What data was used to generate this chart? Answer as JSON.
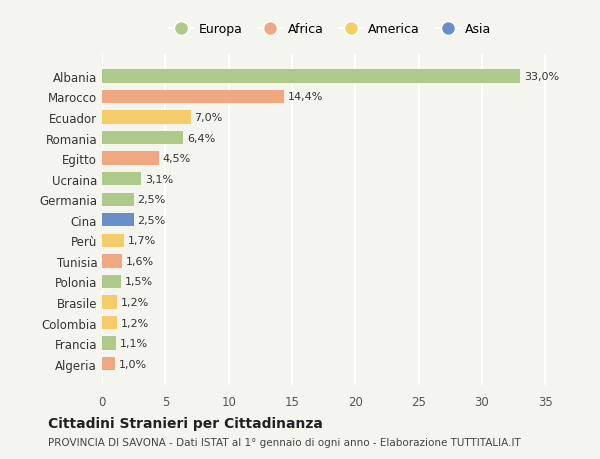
{
  "countries": [
    "Albania",
    "Marocco",
    "Ecuador",
    "Romania",
    "Egitto",
    "Ucraina",
    "Germania",
    "Cina",
    "Perù",
    "Tunisia",
    "Polonia",
    "Brasile",
    "Colombia",
    "Francia",
    "Algeria"
  ],
  "values": [
    33.0,
    14.4,
    7.0,
    6.4,
    4.5,
    3.1,
    2.5,
    2.5,
    1.7,
    1.6,
    1.5,
    1.2,
    1.2,
    1.1,
    1.0
  ],
  "labels": [
    "33,0%",
    "14,4%",
    "7,0%",
    "6,4%",
    "4,5%",
    "3,1%",
    "2,5%",
    "2,5%",
    "1,7%",
    "1,6%",
    "1,5%",
    "1,2%",
    "1,2%",
    "1,1%",
    "1,0%"
  ],
  "categories": [
    "Europa",
    "Africa",
    "America",
    "Asia"
  ],
  "continent": [
    "Europa",
    "Africa",
    "America",
    "Europa",
    "Africa",
    "Europa",
    "Europa",
    "Asia",
    "America",
    "Africa",
    "Europa",
    "America",
    "America",
    "Europa",
    "Africa"
  ],
  "colors": {
    "Europa": "#aec98a",
    "Africa": "#f0a882",
    "America": "#f5cc6a",
    "Asia": "#6a8fc8"
  },
  "xlim": [
    0,
    36
  ],
  "xticks": [
    0,
    5,
    10,
    15,
    20,
    25,
    30,
    35
  ],
  "title": "Cittadini Stranieri per Cittadinanza",
  "subtitle": "PROVINCIA DI SAVONA - Dati ISTAT al 1° gennaio di ogni anno - Elaborazione TUTTITALIA.IT",
  "bg_color": "#f5f5f0",
  "grid_color": "#ffffff"
}
